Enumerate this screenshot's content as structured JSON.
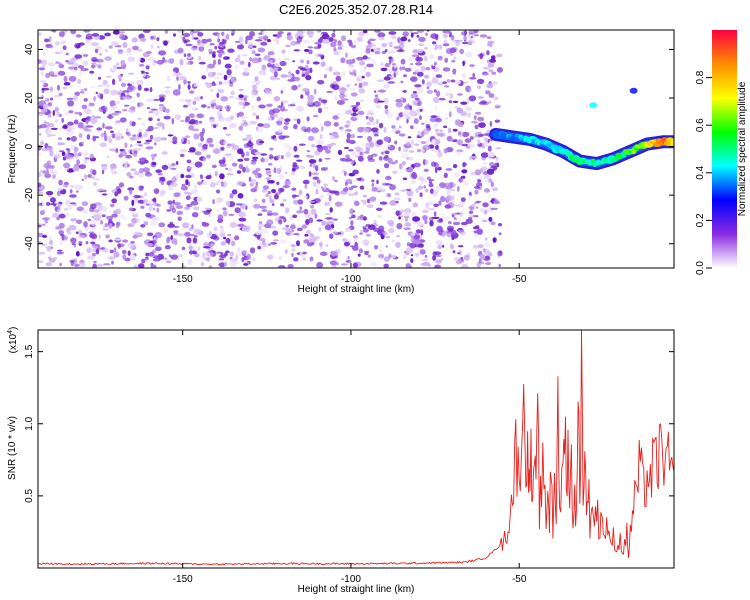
{
  "title": "C2E6.2025.352.07.28.R14",
  "chart_data": [
    {
      "type": "heatmap",
      "title": "C2E6.2025.352.07.28.R14",
      "xlabel": "Height of straight line (km)",
      "ylabel": "Frequency (Hz)",
      "xlim": [
        -193,
        -4
      ],
      "ylim": [
        -50,
        48
      ],
      "x_ticks": [
        -150,
        -100,
        -50
      ],
      "x_tick_labels": [
        "-150",
        "-100",
        "-50"
      ],
      "y_ticks": [
        40,
        20,
        0,
        -20,
        -40
      ],
      "y_tick_labels": [
        "40",
        "20",
        "0",
        "-20",
        "-40"
      ],
      "noise_region_x": [
        -193,
        -58
      ],
      "ridge": {
        "x": [
          -57,
          -52,
          -47,
          -42,
          -37,
          -32,
          -27,
          -22,
          -17,
          -12,
          -7,
          -4
        ],
        "freq": [
          5,
          4,
          3,
          1,
          -2,
          -6,
          -7,
          -5,
          -2,
          1,
          2,
          2
        ],
        "amplitude": [
          0.25,
          0.35,
          0.4,
          0.35,
          0.45,
          0.5,
          0.45,
          0.45,
          0.55,
          0.7,
          0.9,
          0.75
        ]
      },
      "colorbar": {
        "label": "Normalized spectral amplitude",
        "range": [
          0,
          1
        ],
        "ticks": [
          0.0,
          0.2,
          0.4,
          0.6,
          0.8
        ],
        "tick_labels": [
          "0.0",
          "0.2",
          "0.4",
          "0.6",
          "0.8"
        ],
        "colors": [
          "#ffffff",
          "#8a2be2",
          "#0000ff",
          "#00ffff",
          "#00ff00",
          "#ffff00",
          "#ff8c00",
          "#ff0040"
        ]
      }
    },
    {
      "type": "line",
      "xlabel": "Height of straight line (km)",
      "ylabel": "SNR (10 * v/v)",
      "y_exponent_label": "(x10",
      "y_exponent": "4",
      "y_exponent_close": ")",
      "xlim": [
        -193,
        -4
      ],
      "ylim": [
        0,
        16500
      ],
      "x_ticks": [
        -150,
        -100,
        -50
      ],
      "x_tick_labels": [
        "-150",
        "-100",
        "-50"
      ],
      "y_ticks": [
        5000,
        10000,
        15000
      ],
      "y_tick_labels": [
        "0.5",
        "1.0",
        "1.5"
      ],
      "series": [
        {
          "color": "#e8201c",
          "x": [
            -193,
            -180,
            -160,
            -140,
            -120,
            -100,
            -80,
            -66,
            -60,
            -56,
            -54,
            -53,
            -52,
            -51,
            -50,
            -49,
            -48,
            -47.5,
            -47,
            -46.5,
            -46,
            -45.5,
            -45,
            -44.5,
            -44,
            -43,
            -42,
            -41.5,
            -41,
            -40.5,
            -40,
            -39.5,
            -39,
            -38.5,
            -38,
            -37,
            -36.5,
            -36,
            -35.5,
            -35,
            -34.5,
            -34,
            -33.5,
            -33,
            -32.5,
            -32,
            -31.5,
            -31,
            -30.5,
            -30,
            -29.5,
            -29,
            -28.5,
            -28,
            -27,
            -26,
            -25.5,
            -25,
            -24,
            -23,
            -22,
            -21,
            -20,
            -19,
            -18,
            -17.5,
            -17,
            -16,
            -15,
            -14,
            -13,
            -12,
            -11,
            -10,
            -9,
            -8,
            -7,
            -6,
            -5,
            -4
          ],
          "values": [
            300,
            280,
            320,
            260,
            310,
            290,
            330,
            400,
            700,
            1500,
            2600,
            3800,
            6000,
            9500,
            7200,
            13800,
            8000,
            12600,
            6200,
            9800,
            4200,
            10300,
            5500,
            11900,
            4700,
            7600,
            3900,
            6900,
            3500,
            9500,
            3000,
            8700,
            4200,
            11800,
            5300,
            7400,
            13200,
            6800,
            11100,
            4500,
            8600,
            4100,
            6400,
            3600,
            12700,
            7200,
            16500,
            6900,
            9500,
            3800,
            8200,
            2900,
            6100,
            3700,
            4900,
            3000,
            5600,
            2400,
            3700,
            1800,
            2600,
            1500,
            2300,
            1200,
            2900,
            1000,
            3000,
            4800,
            6900,
            8200,
            6200,
            7700,
            7100,
            8400,
            8600,
            9300,
            9700,
            7900,
            8900,
            6700
          ]
        }
      ]
    }
  ]
}
